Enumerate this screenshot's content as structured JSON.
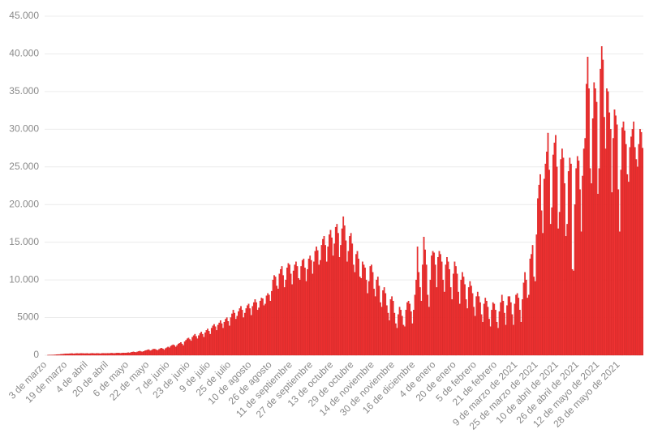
{
  "chart_data": {
    "type": "bar",
    "color": "#f03232",
    "grid": true,
    "ylim": [
      0,
      45000
    ],
    "yticks": [
      0,
      5000,
      {
        "value": 10000,
        "label": "10.000"
      },
      {
        "value": 15000,
        "label": "15.000"
      },
      {
        "value": 20000,
        "label": "20.000"
      },
      {
        "value": 25000,
        "label": "25.000"
      },
      {
        "value": 30000,
        "label": "30.000"
      },
      {
        "value": 35000,
        "label": "35.000"
      },
      {
        "value": 40000,
        "label": "40.000"
      },
      {
        "value": 45000,
        "label": "45.000"
      }
    ],
    "categories": [
      "3 de marzo",
      null,
      null,
      null,
      null,
      null,
      null,
      null,
      null,
      null,
      null,
      null,
      null,
      null,
      null,
      null,
      "19 de marzo",
      null,
      null,
      null,
      null,
      null,
      null,
      null,
      null,
      null,
      null,
      null,
      null,
      null,
      null,
      null,
      "4 de abril",
      null,
      null,
      null,
      null,
      null,
      null,
      null,
      null,
      null,
      null,
      null,
      null,
      null,
      null,
      null,
      "20 de abril",
      null,
      null,
      null,
      null,
      null,
      null,
      null,
      null,
      null,
      null,
      null,
      null,
      null,
      null,
      null,
      "6 de mayo",
      null,
      null,
      null,
      null,
      null,
      null,
      null,
      null,
      null,
      null,
      null,
      null,
      null,
      null,
      null,
      "22 de mayo",
      null,
      null,
      null,
      null,
      null,
      null,
      null,
      null,
      null,
      null,
      null,
      null,
      null,
      null,
      null,
      "7 de junio",
      null,
      null,
      null,
      null,
      null,
      null,
      null,
      null,
      null,
      null,
      null,
      null,
      null,
      null,
      null,
      "23 de junio",
      null,
      null,
      null,
      null,
      null,
      null,
      null,
      null,
      null,
      null,
      null,
      null,
      null,
      null,
      null,
      "9 de julio",
      null,
      null,
      null,
      null,
      null,
      null,
      null,
      null,
      null,
      null,
      null,
      null,
      null,
      null,
      null,
      "25 de julio",
      null,
      null,
      null,
      null,
      null,
      null,
      null,
      null,
      null,
      null,
      null,
      null,
      null,
      null,
      null,
      "10 de agosto",
      null,
      null,
      null,
      null,
      null,
      null,
      null,
      null,
      null,
      null,
      null,
      null,
      null,
      null,
      null,
      "26 de agosto",
      null,
      null,
      null,
      null,
      null,
      null,
      null,
      null,
      null,
      null,
      null,
      null,
      null,
      null,
      null,
      "11 de septiembre",
      null,
      null,
      null,
      null,
      null,
      null,
      null,
      null,
      null,
      null,
      null,
      null,
      null,
      null,
      null,
      "27 de septiembre",
      null,
      null,
      null,
      null,
      null,
      null,
      null,
      null,
      null,
      null,
      null,
      null,
      null,
      null,
      null,
      "13 de octubre",
      null,
      null,
      null,
      null,
      null,
      null,
      null,
      null,
      null,
      null,
      null,
      null,
      null,
      null,
      null,
      "29 de octubre",
      null,
      null,
      null,
      null,
      null,
      null,
      null,
      null,
      null,
      null,
      null,
      null,
      null,
      null,
      null,
      "14 de noviembre",
      null,
      null,
      null,
      null,
      null,
      null,
      null,
      null,
      null,
      null,
      null,
      null,
      null,
      null,
      null,
      "30 de noviembre",
      null,
      null,
      null,
      null,
      null,
      null,
      null,
      null,
      null,
      null,
      null,
      null,
      null,
      null,
      null,
      "16 de diciembre",
      null,
      null,
      null,
      null,
      null,
      null,
      null,
      null,
      null,
      null,
      null,
      null,
      null,
      null,
      null,
      "4 de enero",
      null,
      null,
      null,
      null,
      null,
      null,
      null,
      null,
      null,
      null,
      null,
      null,
      null,
      null,
      null,
      "20 de enero",
      null,
      null,
      null,
      null,
      null,
      null,
      null,
      null,
      null,
      null,
      null,
      null,
      null,
      null,
      null,
      "5 de febrero",
      null,
      null,
      null,
      null,
      null,
      null,
      null,
      null,
      null,
      null,
      null,
      null,
      null,
      null,
      null,
      "21 de febrero",
      null,
      null,
      null,
      null,
      null,
      null,
      null,
      null,
      null,
      null,
      null,
      null,
      null,
      null,
      null,
      "9 de marzo de 2021",
      null,
      null,
      null,
      null,
      null,
      null,
      null,
      null,
      null,
      null,
      null,
      null,
      null,
      null,
      null,
      "25 de marzo de 2021",
      null,
      null,
      null,
      null,
      null,
      null,
      null,
      null,
      null,
      null,
      null,
      null,
      null,
      null,
      null,
      "10 de abril de 2021",
      null,
      null,
      null,
      null,
      null,
      null,
      null,
      null,
      null,
      null,
      null,
      null,
      null,
      null,
      null,
      "26 de abril de 2021",
      null,
      null,
      null,
      null,
      null,
      null,
      null,
      null,
      null,
      null,
      null,
      null,
      null,
      null,
      null,
      "12 de mayo de 2021",
      null,
      null,
      null,
      null,
      null,
      null,
      null,
      null,
      null,
      null,
      null,
      null,
      null,
      null,
      null,
      "28 de mayo de 2021",
      null,
      null,
      null,
      null,
      null,
      null,
      null,
      null,
      null,
      null,
      null,
      null,
      null,
      null,
      null,
      null,
      null,
      null,
      null
    ],
    "values": [
      0,
      0,
      10,
      20,
      20,
      30,
      40,
      50,
      60,
      80,
      100,
      100,
      120,
      130,
      150,
      170,
      180,
      200,
      190,
      210,
      220,
      230,
      200,
      210,
      230,
      240,
      220,
      230,
      250,
      240,
      230,
      220,
      230,
      240,
      210,
      220,
      250,
      260,
      230,
      220,
      240,
      250,
      230,
      210,
      240,
      260,
      250,
      240,
      250,
      260,
      240,
      270,
      280,
      260,
      250,
      270,
      290,
      300,
      280,
      260,
      290,
      310,
      300,
      290,
      320,
      350,
      300,
      380,
      420,
      450,
      400,
      380,
      450,
      500,
      550,
      480,
      450,
      520,
      600,
      650,
      700,
      750,
      600,
      650,
      780,
      820,
      800,
      700,
      650,
      800,
      900,
      950,
      850,
      700,
      900,
      1000,
      1100,
      1000,
      1200,
      1300,
      1400,
      1300,
      1100,
      1300,
      1500,
      1600,
      1700,
      1500,
      1300,
      1800,
      2000,
      2200,
      2300,
      2100,
      1900,
      2400,
      2600,
      2800,
      2500,
      2200,
      2600,
      2900,
      3100,
      2800,
      2400,
      3000,
      3300,
      3500,
      3200,
      2800,
      3600,
      3900,
      4100,
      3800,
      3300,
      4000,
      4300,
      4600,
      4200,
      3600,
      4400,
      4800,
      5000,
      4500,
      3900,
      5000,
      5500,
      6000,
      5600,
      4800,
      5200,
      5800,
      6200,
      6500,
      6000,
      5000,
      5600,
      6200,
      6600,
      6800,
      6200,
      5300,
      6500,
      7000,
      7400,
      7000,
      6000,
      6300,
      7200,
      7600,
      7500,
      6600,
      6800,
      7900,
      8200,
      8000,
      7200,
      8500,
      10000,
      10600,
      10400,
      9200,
      8800,
      10800,
      11400,
      11800,
      10600,
      9000,
      10000,
      11600,
      12200,
      12000,
      10800,
      9400,
      11200,
      12000,
      12400,
      11800,
      10200,
      10000,
      11800,
      12600,
      12800,
      11600,
      9800,
      11400,
      12800,
      13200,
      12600,
      10800,
      12400,
      13800,
      14400,
      13900,
      12000,
      12600,
      14600,
      15400,
      15800,
      14600,
      12400,
      14400,
      16000,
      16600,
      15600,
      13200,
      14800,
      17000,
      17400,
      16200,
      13000,
      14600,
      16800,
      18400,
      17200,
      15200,
      12400,
      13800,
      15800,
      16200,
      14800,
      12000,
      11000,
      13400,
      13800,
      12800,
      10400,
      10200,
      12400,
      12000,
      11600,
      10000,
      8200,
      9800,
      11800,
      12000,
      11000,
      8800,
      7800,
      10000,
      10400,
      9200,
      7000,
      6400,
      8600,
      9000,
      8200,
      6600,
      5600,
      4600,
      7400,
      7800,
      7200,
      5600,
      4200,
      3600,
      5400,
      6400,
      6000,
      5200,
      4000,
      3800,
      6000,
      7000,
      7200,
      6800,
      5800,
      4200,
      6000,
      8000,
      10000,
      14400,
      11000,
      9000,
      7200,
      12000,
      15700,
      14000,
      12000,
      8000,
      6400,
      10000,
      13200,
      13800,
      13600,
      12000,
      9000,
      13000,
      13800,
      13400,
      12400,
      10000,
      8400,
      12000,
      13000,
      12400,
      11400,
      9000,
      7400,
      10800,
      12400,
      11800,
      10800,
      8400,
      6800,
      10000,
      11000,
      10400,
      9400,
      7400,
      6200,
      9000,
      9800,
      9200,
      8200,
      6400,
      5200,
      7800,
      8400,
      7800,
      7000,
      5400,
      4400,
      6800,
      7600,
      7200,
      6400,
      4800,
      3800,
      6000,
      7000,
      6800,
      6000,
      4400,
      3600,
      5800,
      7000,
      8000,
      7200,
      5600,
      4000,
      6600,
      7800,
      7800,
      7000,
      5400,
      4000,
      6800,
      8000,
      8200,
      7600,
      6000,
      4400,
      7400,
      9600,
      11000,
      10000,
      7600,
      8000,
      12800,
      13400,
      14600,
      10400,
      9800,
      16000,
      20800,
      22600,
      24000,
      19200,
      16200,
      23400,
      25400,
      27000,
      29500,
      24600,
      17400,
      19600,
      26600,
      28200,
      29200,
      25000,
      16800,
      19000,
      26000,
      27400,
      26200,
      22800,
      15800,
      17400,
      24400,
      26200,
      25400,
      11400,
      11200,
      20000,
      24800,
      26400,
      25800,
      22000,
      16400,
      23800,
      27400,
      28800,
      36000,
      39600,
      35400,
      24800,
      22800,
      31400,
      36200,
      35400,
      33600,
      21400,
      24800,
      38000,
      41000,
      39200,
      31600,
      27400,
      35400,
      35000,
      32200,
      30000,
      21600,
      28800,
      32600,
      31800,
      30600,
      22000,
      16400,
      24600,
      30200,
      31000,
      29800,
      28000,
      24000,
      23000,
      27600,
      29000,
      30000,
      31000,
      27600,
      26000,
      25000,
      28000,
      30000,
      29600,
      27500
    ]
  }
}
